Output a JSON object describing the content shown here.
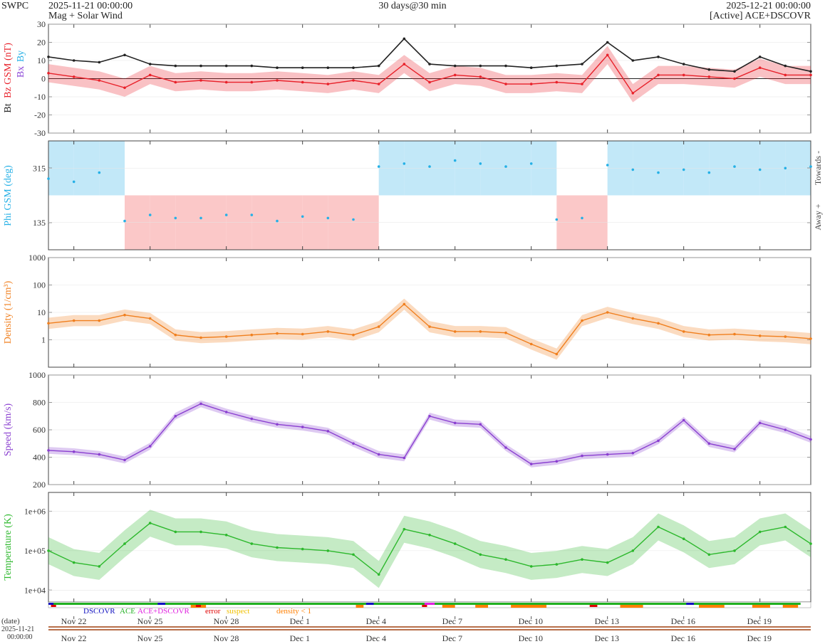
{
  "header": {
    "brand": "SWPC",
    "start": "2025-11-21 00:00:00",
    "subtitle": "Mag + Solar Wind",
    "span": "30 days@30 min",
    "end": "2025-12-21 00:00:00",
    "source": "[Active] ACE+DSCOVR"
  },
  "colors": {
    "bt": "#222222",
    "bz": "#e8212a",
    "by": "#25b0e6",
    "bx": "#8a44d6",
    "towards": "#c2e8f8",
    "away": "#fbc8c8",
    "density": "#f07f1e",
    "speed": "#8a3fd0",
    "temperature": "#2db82d",
    "dscovr": "#1010c0",
    "ace": "#20b020",
    "ace_dscovr": "#e020e0",
    "error": "#e00000",
    "suspect": "#f0c000",
    "density_lt1": "#ff7f00"
  },
  "chart_data": [
    {
      "id": "mag",
      "type": "line",
      "ylabel_parts": [
        "Bt",
        "Bz GSM (nT)",
        "Bx",
        "By"
      ],
      "ylim": [
        -30,
        30
      ],
      "yticks": [
        -30,
        -20,
        -10,
        0,
        10,
        20,
        30
      ],
      "x": [
        0,
        1,
        2,
        3,
        4,
        5,
        6,
        7,
        8,
        9,
        10,
        11,
        12,
        13,
        14,
        15,
        16,
        17,
        18,
        19,
        20,
        21,
        22,
        23,
        24,
        25,
        26,
        27,
        28,
        29,
        30
      ],
      "series": [
        {
          "name": "Bt",
          "values": [
            12,
            10,
            9,
            13,
            8,
            7,
            7,
            7,
            7,
            6,
            6,
            6,
            6,
            7,
            22,
            8,
            7,
            7,
            7,
            6,
            7,
            8,
            20,
            10,
            12,
            8,
            5,
            4,
            12,
            7,
            4
          ]
        },
        {
          "name": "Bz",
          "values": [
            3,
            1,
            -1,
            -5,
            2,
            -2,
            -1,
            -2,
            -2,
            -1,
            -2,
            -3,
            -1,
            -3,
            8,
            -2,
            2,
            1,
            -3,
            -3,
            -2,
            -3,
            13,
            -8,
            2,
            2,
            1,
            0,
            6,
            2,
            2
          ]
        }
      ]
    },
    {
      "id": "phi",
      "type": "scatter",
      "ylabel": "Phi GSM (deg)",
      "ylim": [
        45,
        405
      ],
      "yticks": [
        135,
        315
      ],
      "side_labels": [
        "Towards -",
        "Away +"
      ],
      "x": [
        0,
        1,
        2,
        3,
        4,
        5,
        6,
        7,
        8,
        9,
        10,
        11,
        12,
        13,
        14,
        15,
        16,
        17,
        18,
        19,
        20,
        21,
        22,
        23,
        24,
        25,
        26,
        27,
        28,
        29,
        30
      ],
      "values": [
        280,
        270,
        300,
        140,
        160,
        150,
        150,
        160,
        160,
        140,
        155,
        150,
        145,
        320,
        330,
        320,
        340,
        330,
        320,
        330,
        145,
        150,
        325,
        310,
        300,
        310,
        300,
        320,
        310,
        315,
        320
      ]
    },
    {
      "id": "density",
      "type": "line",
      "scale": "log",
      "ylabel": "Density (1/cm³)",
      "ylim": [
        0.1,
        1000
      ],
      "yticks": [
        1,
        10,
        100,
        1000
      ],
      "x": [
        0,
        1,
        2,
        3,
        4,
        5,
        6,
        7,
        8,
        9,
        10,
        11,
        12,
        13,
        14,
        15,
        16,
        17,
        18,
        19,
        20,
        21,
        22,
        23,
        24,
        25,
        26,
        27,
        28,
        29,
        30
      ],
      "values": [
        4,
        5,
        5,
        8,
        6,
        1.5,
        1.2,
        1.3,
        1.5,
        1.7,
        1.6,
        2,
        1.5,
        3,
        20,
        3,
        2,
        2,
        1.8,
        0.7,
        0.3,
        5,
        10,
        6,
        4,
        2,
        1.5,
        1.6,
        1.4,
        1.3,
        1.1
      ]
    },
    {
      "id": "speed",
      "type": "line",
      "ylabel": "Speed (km/s)",
      "ylim": [
        200,
        1000
      ],
      "yticks": [
        200,
        400,
        600,
        800,
        1000
      ],
      "x": [
        0,
        1,
        2,
        3,
        4,
        5,
        6,
        7,
        8,
        9,
        10,
        11,
        12,
        13,
        14,
        15,
        16,
        17,
        18,
        19,
        20,
        21,
        22,
        23,
        24,
        25,
        26,
        27,
        28,
        29,
        30
      ],
      "values": [
        450,
        440,
        420,
        380,
        480,
        700,
        790,
        730,
        680,
        640,
        620,
        590,
        500,
        420,
        395,
        700,
        650,
        640,
        470,
        350,
        370,
        410,
        420,
        430,
        520,
        670,
        500,
        460,
        650,
        600,
        530
      ]
    },
    {
      "id": "temperature",
      "type": "line",
      "scale": "log",
      "ylabel": "Temperature (K)",
      "ylim": [
        5000,
        3000000
      ],
      "yticks": [
        10000,
        100000,
        1000000
      ],
      "ytick_labels": [
        "1e+04",
        "1e+05",
        "1e+06"
      ],
      "x": [
        0,
        1,
        2,
        3,
        4,
        5,
        6,
        7,
        8,
        9,
        10,
        11,
        12,
        13,
        14,
        15,
        16,
        17,
        18,
        19,
        20,
        21,
        22,
        23,
        24,
        25,
        26,
        27,
        28,
        29,
        30
      ],
      "values": [
        100000,
        50000,
        40000,
        150000,
        500000,
        300000,
        300000,
        250000,
        150000,
        120000,
        110000,
        100000,
        80000,
        25000,
        350000,
        250000,
        150000,
        80000,
        60000,
        40000,
        45000,
        60000,
        50000,
        100000,
        400000,
        200000,
        80000,
        100000,
        300000,
        400000,
        150000
      ]
    }
  ],
  "status_legend": {
    "dscovr": "DSCOVR",
    "ace": "ACE",
    "ace_dscovr": "ACE+DSCOVR",
    "error": "error",
    "suspect": "suspect",
    "density_lt1": "density < 1"
  },
  "xaxis": {
    "ticks": [
      {
        "day": 1,
        "label": "Nov 22"
      },
      {
        "day": 4,
        "label": "Nov 25"
      },
      {
        "day": 7,
        "label": "Nov 28"
      },
      {
        "day": 10,
        "label": "Dec 1"
      },
      {
        "day": 13,
        "label": "Dec 4"
      },
      {
        "day": 16,
        "label": "Dec 7"
      },
      {
        "day": 19,
        "label": "Dec 10"
      },
      {
        "day": 22,
        "label": "Dec 13"
      },
      {
        "day": 25,
        "label": "Dec 16"
      },
      {
        "day": 28,
        "label": "Dec 19"
      }
    ],
    "date_label": "(date)",
    "start_date": "2025-11-21",
    "start_time": "00:00:00"
  }
}
